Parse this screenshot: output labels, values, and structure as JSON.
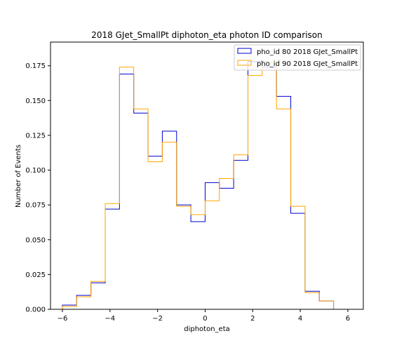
{
  "chart_data": {
    "type": "line",
    "subtype": "step-histogram",
    "title": "2018 GJet_SmallPt diphoton_eta photon ID comparison",
    "xlabel": "diphoton_eta",
    "ylabel": "Number of Events",
    "xlim": [
      -6.5,
      6.65
    ],
    "ylim": [
      0,
      0.192
    ],
    "xticks": [
      -6,
      -4,
      -2,
      0,
      2,
      4,
      6
    ],
    "xtick_labels": [
      "−6",
      "−4",
      "−2",
      "0",
      "2",
      "4",
      "6"
    ],
    "yticks": [
      0,
      0.025,
      0.05,
      0.075,
      0.1,
      0.125,
      0.15,
      0.175
    ],
    "ytick_labels": [
      "0.000",
      "0.025",
      "0.050",
      "0.075",
      "0.100",
      "0.125",
      "0.150",
      "0.175"
    ],
    "grid": false,
    "legend_position": "top-right",
    "bin_edges": [
      -6.0,
      -5.4,
      -4.8,
      -4.2,
      -3.6,
      -3.0,
      -2.4,
      -1.8,
      -1.2,
      -0.6,
      0.0,
      0.6,
      1.2,
      1.8,
      2.4,
      3.0,
      3.6,
      4.2,
      4.8,
      5.4
    ],
    "series": [
      {
        "name": "pho_id 80 2018 GJet_SmallPt",
        "color": "#0000cd",
        "values": [
          0.003,
          0.01,
          0.019,
          0.072,
          0.169,
          0.141,
          0.11,
          0.128,
          0.075,
          0.063,
          0.091,
          0.087,
          0.107,
          0.178,
          0.174,
          0.153,
          0.069,
          0.013,
          0.006
        ]
      },
      {
        "name": "pho_id 90 2018 GJet_SmallPt",
        "color": "#ffa500",
        "values": [
          0.002,
          0.009,
          0.02,
          0.076,
          0.174,
          0.144,
          0.106,
          0.12,
          0.074,
          0.068,
          0.078,
          0.094,
          0.111,
          0.168,
          0.178,
          0.144,
          0.074,
          0.012,
          0.006
        ]
      }
    ]
  }
}
